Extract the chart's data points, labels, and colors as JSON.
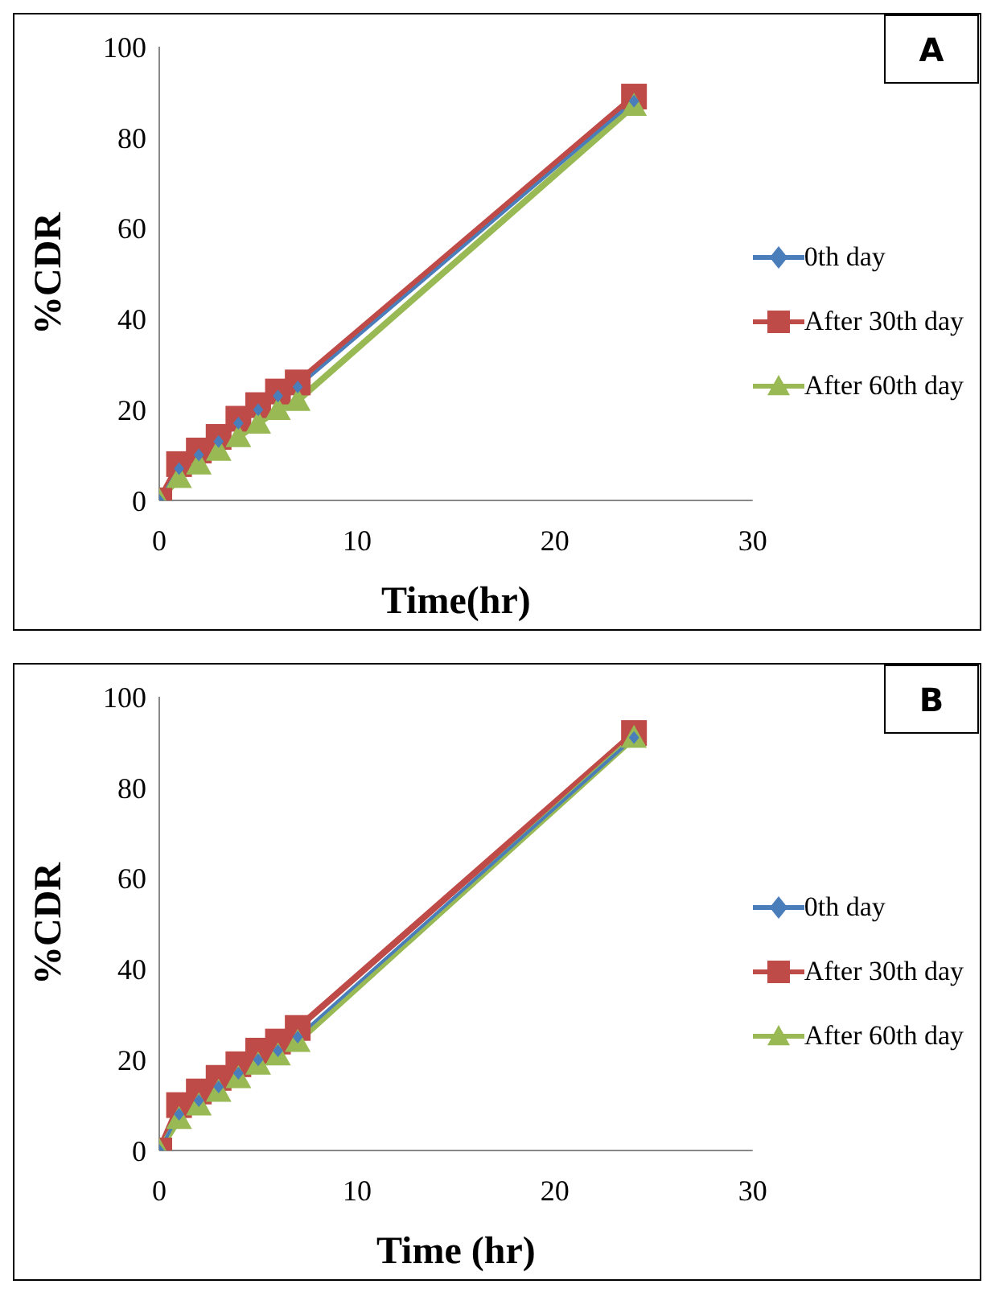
{
  "chart_data": [
    {
      "type": "line",
      "annotations": [
        "A"
      ],
      "xlabel": "Time(hr)",
      "ylabel": "%CDR",
      "x": [
        0,
        1,
        2,
        3,
        4,
        5,
        6,
        7,
        24
      ],
      "series": [
        {
          "name": "0th day",
          "color": "#4a7ebb",
          "marker": "diamond",
          "values": [
            0,
            7,
            10,
            13,
            17,
            20,
            23,
            25,
            88
          ]
        },
        {
          "name": "After 30th day",
          "color": "#be4b48",
          "marker": "square",
          "values": [
            0,
            8,
            11,
            14,
            18,
            21,
            24,
            26,
            89
          ]
        },
        {
          "name": "After 60th day",
          "color": "#98b954",
          "marker": "triangle",
          "values": [
            0,
            5,
            8,
            11,
            14,
            17,
            20,
            22,
            87
          ]
        }
      ],
      "xlim": [
        0,
        30
      ],
      "xticks": [
        0,
        10,
        20,
        30
      ],
      "ylim": [
        0,
        100
      ],
      "yticks": [
        0,
        20,
        40,
        60,
        80,
        100
      ],
      "grid": false,
      "legend": "right"
    },
    {
      "type": "line",
      "annotations": [
        "B"
      ],
      "xlabel": "Time (hr)",
      "ylabel": "%CDR",
      "x": [
        0,
        1,
        2,
        3,
        4,
        5,
        6,
        7,
        24
      ],
      "series": [
        {
          "name": "0th day",
          "color": "#4a7ebb",
          "marker": "diamond",
          "values": [
            0,
            8,
            11,
            14,
            17,
            20,
            22,
            25,
            91
          ]
        },
        {
          "name": "After 30th day",
          "color": "#be4b48",
          "marker": "square",
          "values": [
            0,
            10,
            13,
            16,
            19,
            22,
            24,
            27,
            92
          ]
        },
        {
          "name": "After 60th day",
          "color": "#98b954",
          "marker": "triangle",
          "values": [
            0,
            7,
            10,
            13,
            16,
            19,
            21,
            24,
            91
          ]
        }
      ],
      "xlim": [
        0,
        30
      ],
      "xticks": [
        0,
        10,
        20,
        30
      ],
      "ylim": [
        0,
        100
      ],
      "yticks": [
        0,
        20,
        40,
        60,
        80,
        100
      ],
      "grid": false,
      "legend": "right"
    }
  ]
}
